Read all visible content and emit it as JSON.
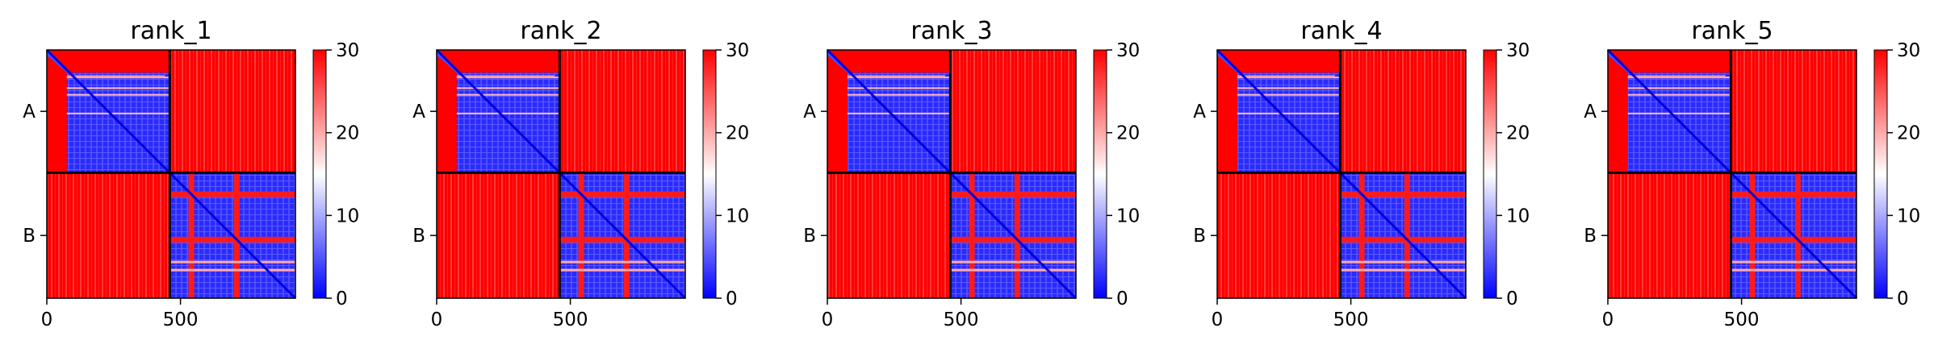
{
  "chart_data": [
    {
      "type": "heatmap",
      "title": "rank_1",
      "chains": [
        "A",
        "B"
      ],
      "chain_break": 460,
      "length": 930,
      "xticks": [
        0,
        500
      ],
      "colorbar": {
        "ticks": [
          0,
          10,
          20,
          30
        ],
        "range": [
          0,
          30
        ],
        "colors": [
          "#0000ff",
          "#ffffff",
          "#ff0000"
        ]
      }
    },
    {
      "type": "heatmap",
      "title": "rank_2",
      "chains": [
        "A",
        "B"
      ],
      "chain_break": 460,
      "length": 930,
      "xticks": [
        0,
        500
      ],
      "colorbar": {
        "ticks": [
          0,
          10,
          20,
          30
        ],
        "range": [
          0,
          30
        ],
        "colors": [
          "#0000ff",
          "#ffffff",
          "#ff0000"
        ]
      }
    },
    {
      "type": "heatmap",
      "title": "rank_3",
      "chains": [
        "A",
        "B"
      ],
      "chain_break": 460,
      "length": 930,
      "xticks": [
        0,
        500
      ],
      "colorbar": {
        "ticks": [
          0,
          10,
          20,
          30
        ],
        "range": [
          0,
          30
        ],
        "colors": [
          "#0000ff",
          "#ffffff",
          "#ff0000"
        ]
      }
    },
    {
      "type": "heatmap",
      "title": "rank_4",
      "chains": [
        "A",
        "B"
      ],
      "chain_break": 460,
      "length": 930,
      "xticks": [
        0,
        500
      ],
      "colorbar": {
        "ticks": [
          0,
          10,
          20,
          30
        ],
        "range": [
          0,
          30
        ],
        "colors": [
          "#0000ff",
          "#ffffff",
          "#ff0000"
        ]
      }
    },
    {
      "type": "heatmap",
      "title": "rank_5",
      "chains": [
        "A",
        "B"
      ],
      "chain_break": 460,
      "length": 930,
      "xticks": [
        0,
        500
      ],
      "colorbar": {
        "ticks": [
          0,
          10,
          20,
          30
        ],
        "range": [
          0,
          30
        ],
        "colors": [
          "#0000ff",
          "#ffffff",
          "#ff0000"
        ]
      }
    }
  ]
}
